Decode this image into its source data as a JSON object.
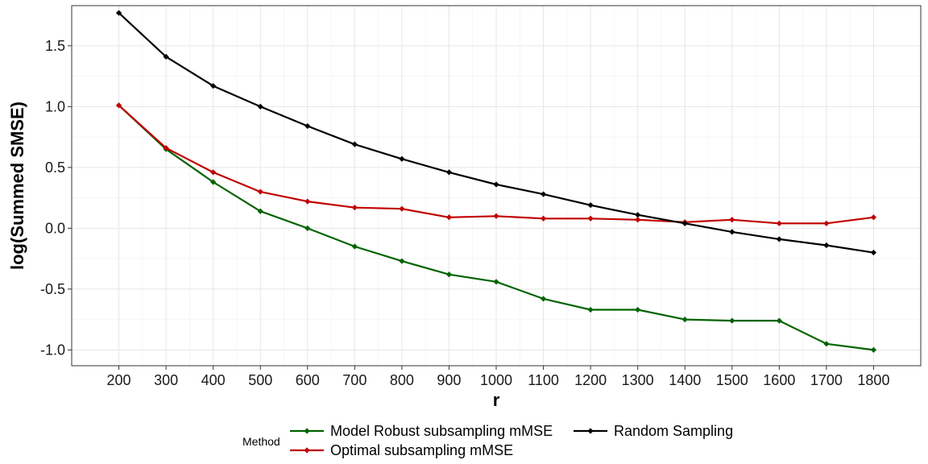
{
  "chart_data": {
    "type": "line",
    "xlabel": "r",
    "ylabel": "log(Summed SMSE)",
    "x": [
      200,
      300,
      400,
      500,
      600,
      700,
      800,
      900,
      1000,
      1100,
      1200,
      1300,
      1400,
      1500,
      1600,
      1700,
      1800
    ],
    "xlim": [
      100,
      1900
    ],
    "ylim": [
      -1.13,
      1.83
    ],
    "xticks": [
      "200",
      "300",
      "400",
      "500",
      "600",
      "700",
      "800",
      "900",
      "1000",
      "1100",
      "1200",
      "1300",
      "1400",
      "1500",
      "1600",
      "1700",
      "1800"
    ],
    "yticks": [
      "-1.0",
      "-0.5",
      "0.0",
      "0.5",
      "1.0",
      "1.5"
    ],
    "grid": true,
    "legend": {
      "title": "Method",
      "position": "bottom"
    },
    "series": [
      {
        "name": "Model Robust subsampling mMSE",
        "color": "#006400",
        "values": [
          1.01,
          0.65,
          0.38,
          0.14,
          0.0,
          -0.15,
          -0.27,
          -0.38,
          -0.44,
          -0.58,
          -0.67,
          -0.67,
          -0.75,
          -0.76,
          -0.76,
          -0.95,
          -1.0
        ]
      },
      {
        "name": "Optimal subsampling mMSE",
        "color": "#C00000",
        "values": [
          1.01,
          0.66,
          0.46,
          0.3,
          0.22,
          0.17,
          0.16,
          0.09,
          0.1,
          0.08,
          0.08,
          0.07,
          0.05,
          0.07,
          0.04,
          0.04,
          0.09
        ]
      },
      {
        "name": "Random Sampling",
        "color": "#000000",
        "values": [
          1.77,
          1.41,
          1.17,
          1.0,
          0.84,
          0.69,
          0.57,
          0.46,
          0.36,
          0.28,
          0.19,
          0.11,
          0.04,
          -0.03,
          -0.09,
          -0.14,
          -0.2
        ]
      }
    ]
  }
}
